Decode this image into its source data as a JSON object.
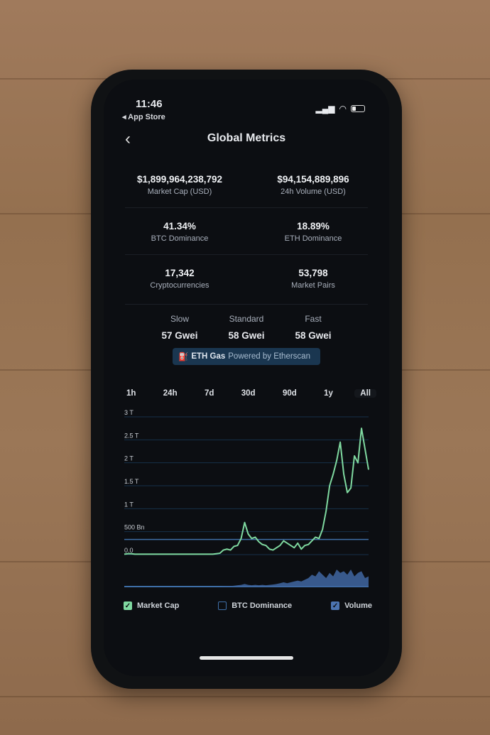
{
  "status_bar": {
    "time": "11:46",
    "back_app": "◂ App Store"
  },
  "header": {
    "title": "Global Metrics",
    "back_icon": "chevron-left-icon"
  },
  "metrics": [
    {
      "value": "$1,899,964,238,792",
      "label": "Market Cap (USD)"
    },
    {
      "value": "$94,154,889,896",
      "label": "24h Volume (USD)"
    },
    {
      "value": "41.34%",
      "label": "BTC Dominance"
    },
    {
      "value": "18.89%",
      "label": "ETH Dominance"
    },
    {
      "value": "17,342",
      "label": "Cryptocurrencies"
    },
    {
      "value": "53,798",
      "label": "Market Pairs"
    }
  ],
  "gas": {
    "items": [
      {
        "label": "Slow",
        "value": "57 Gwei"
      },
      {
        "label": "Standard",
        "value": "58 Gwei"
      },
      {
        "label": "Fast",
        "value": "58 Gwei"
      }
    ],
    "badge_title": "ETH Gas",
    "badge_sub": "Powered by Etherscan",
    "badge_icon": "fuel-pump-icon"
  },
  "range_tabs": [
    "1h",
    "24h",
    "7d",
    "30d",
    "90d",
    "1y",
    "All"
  ],
  "selected_range": "All",
  "legend": [
    {
      "label": "Market Cap",
      "checked": true,
      "color": "#7fd9a0"
    },
    {
      "label": "BTC Dominance",
      "checked": false,
      "color": "#3f6fa8"
    },
    {
      "label": "Volume",
      "checked": true,
      "color": "#4c74b0"
    }
  ],
  "chart_data": {
    "type": "line",
    "y_ticks": [
      "0.0",
      "500 Bn",
      "1 T",
      "1.5 T",
      "2 T",
      "2.5 T",
      "3 T"
    ],
    "ylim": [
      0,
      3
    ],
    "y_unit": "T",
    "grid": true,
    "legend_placement": "bottom",
    "series": [
      {
        "name": "Market Cap",
        "color": "#7fd9a0",
        "values": [
          0.01,
          0.02,
          0.02,
          0.01,
          0.01,
          0.01,
          0.01,
          0.01,
          0.01,
          0.01,
          0.01,
          0.01,
          0.01,
          0.01,
          0.01,
          0.01,
          0.01,
          0.01,
          0.01,
          0.01,
          0.01,
          0.01,
          0.01,
          0.01,
          0.01,
          0.01,
          0.02,
          0.03,
          0.1,
          0.12,
          0.1,
          0.18,
          0.2,
          0.35,
          0.7,
          0.45,
          0.35,
          0.38,
          0.28,
          0.22,
          0.2,
          0.12,
          0.1,
          0.15,
          0.2,
          0.3,
          0.25,
          0.2,
          0.15,
          0.25,
          0.12,
          0.2,
          0.22,
          0.3,
          0.38,
          0.35,
          0.55,
          0.95,
          1.5,
          1.75,
          2.05,
          2.45,
          1.75,
          1.35,
          1.45,
          2.15,
          2.0,
          2.75,
          2.3,
          1.85
        ]
      },
      {
        "name": "Volume",
        "color": "#4c74b0",
        "values": [
          0,
          0,
          0,
          0,
          0,
          0,
          0,
          0,
          0,
          0,
          0,
          0,
          0,
          0,
          0,
          0,
          0,
          0,
          0,
          0,
          0,
          0,
          0,
          0,
          0,
          0,
          0,
          0,
          0.02,
          0.03,
          0.03,
          0.05,
          0.08,
          0.1,
          0.15,
          0.1,
          0.08,
          0.1,
          0.08,
          0.1,
          0.08,
          0.1,
          0.12,
          0.15,
          0.2,
          0.25,
          0.2,
          0.25,
          0.3,
          0.35,
          0.3,
          0.4,
          0.5,
          0.7,
          0.6,
          0.9,
          0.7,
          0.5,
          0.8,
          0.6,
          1.0,
          0.8,
          0.9,
          0.7,
          1.0,
          0.6,
          0.8,
          0.9,
          0.5,
          0.6
        ]
      }
    ],
    "reference_line": 0.33
  }
}
